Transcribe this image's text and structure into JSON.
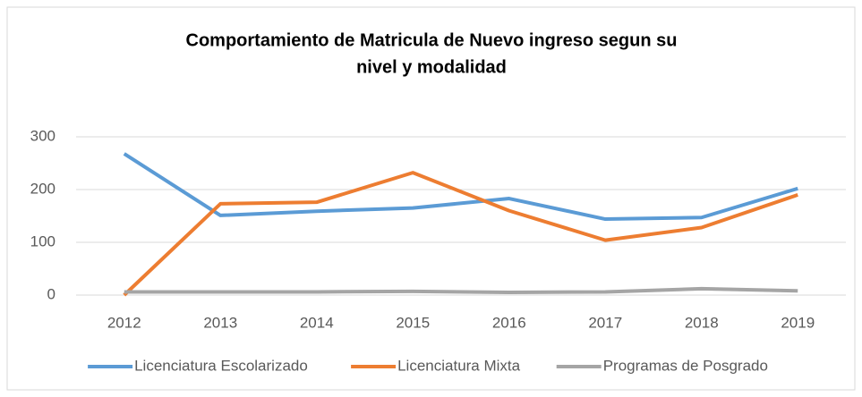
{
  "chart_data": {
    "type": "line",
    "title_lines": [
      "Comportamiento de Matricula de Nuevo ingreso segun su",
      "nivel y modalidad"
    ],
    "categories": [
      "2012",
      "2013",
      "2014",
      "2015",
      "2016",
      "2017",
      "2018",
      "2019"
    ],
    "series": [
      {
        "name": "Licenciatura Escolarizado",
        "color": "#5b9bd5",
        "values": [
          268,
          151,
          159,
          165,
          183,
          144,
          147,
          202
        ]
      },
      {
        "name": "Licenciatura Mixta",
        "color": "#ed7d31",
        "values": [
          0,
          173,
          176,
          232,
          160,
          104,
          128,
          190
        ]
      },
      {
        "name": "Programas de Posgrado",
        "color": "#a5a5a5",
        "values": [
          6,
          6,
          6,
          7,
          5,
          6,
          12,
          8
        ]
      }
    ],
    "ylim": [
      0,
      300
    ],
    "yticks": [
      0,
      100,
      200,
      300
    ],
    "grid": true,
    "legend": "bottom"
  }
}
